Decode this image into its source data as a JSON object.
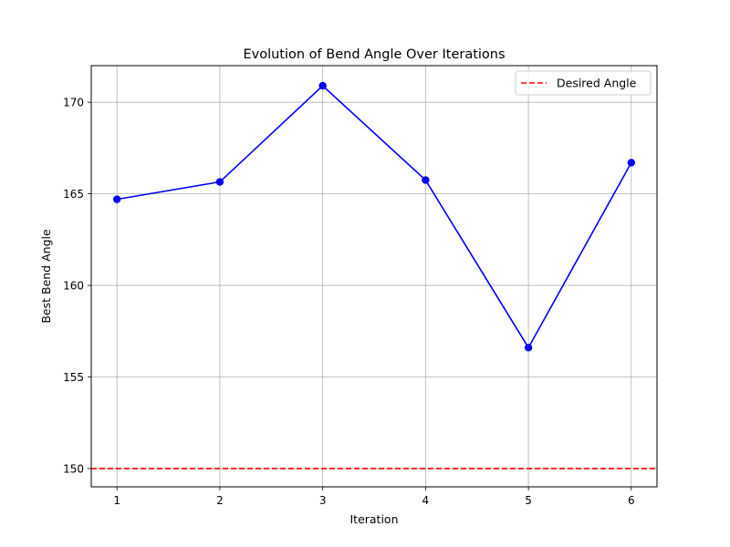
{
  "chart_data": {
    "type": "line",
    "title": "Evolution of Bend Angle Over Iterations",
    "xlabel": "Iteration",
    "ylabel": "Best Bend Angle",
    "x": [
      1,
      2,
      3,
      4,
      5,
      6
    ],
    "xticks": [
      1,
      2,
      3,
      4,
      5,
      6
    ],
    "yticks": [
      150,
      155,
      160,
      165,
      170
    ],
    "xlim": [
      0.75,
      6.25
    ],
    "ylim": [
      149.0,
      172.0
    ],
    "grid": true,
    "legend_position": "top-right",
    "series": [
      {
        "values": [
          164.7,
          165.65,
          170.9,
          165.75,
          156.6,
          166.7
        ],
        "color": "#0000ff",
        "marker": "circle"
      }
    ],
    "reference_lines": [
      {
        "name": "Desired Angle",
        "y": 150,
        "color": "#ff0000",
        "style": "dashed"
      }
    ]
  }
}
